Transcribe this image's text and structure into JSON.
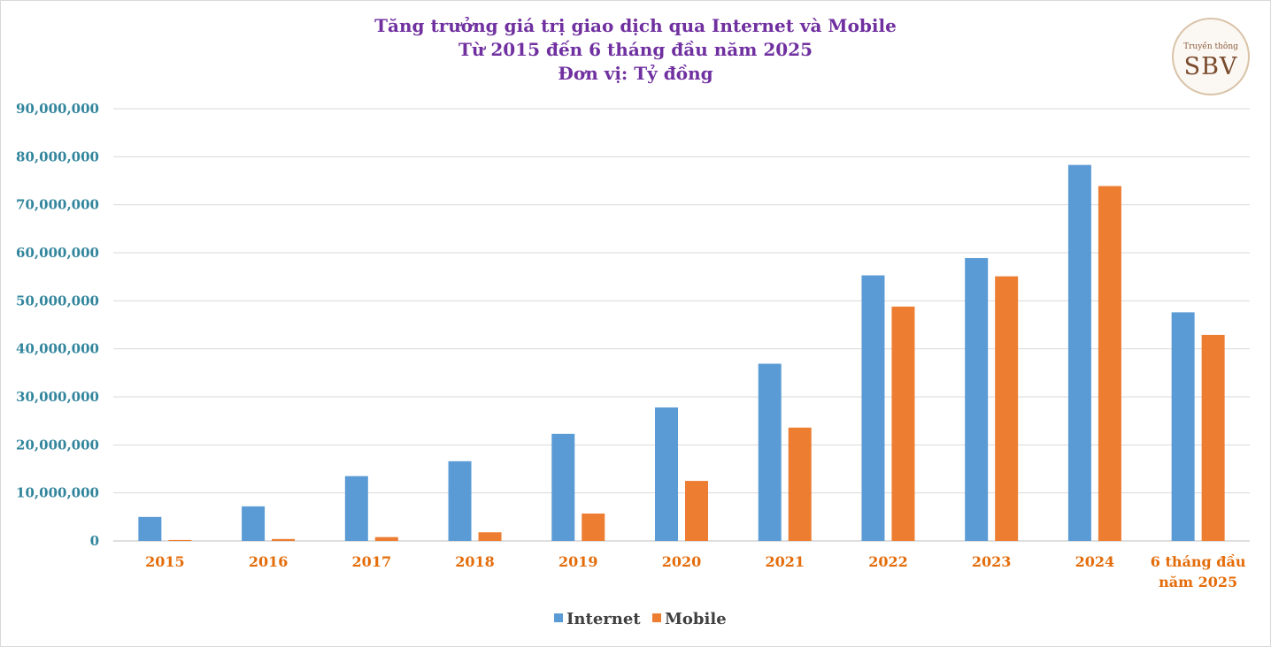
{
  "chart_data": {
    "type": "bar",
    "title_lines": [
      "Tăng trưởng giá trị giao dịch qua Internet và Mobile",
      "Từ 2015 đến 6 tháng đầu năm 2025",
      "Đơn vị: Tỷ đồng"
    ],
    "categories": [
      [
        "2015"
      ],
      [
        "2016"
      ],
      [
        "2017"
      ],
      [
        "2018"
      ],
      [
        "2019"
      ],
      [
        "2020"
      ],
      [
        "2021"
      ],
      [
        "2022"
      ],
      [
        "2023"
      ],
      [
        "2024"
      ],
      [
        "6 tháng đầu",
        "năm 2025"
      ]
    ],
    "series": [
      {
        "name": "Internet",
        "color": "#5b9bd5",
        "values": [
          5000000,
          7200000,
          13500000,
          16600000,
          22300000,
          27800000,
          36900000,
          55300000,
          58900000,
          78300000,
          47600000
        ]
      },
      {
        "name": "Mobile",
        "color": "#ed7d31",
        "values": [
          200000,
          400000,
          800000,
          1800000,
          5700000,
          12500000,
          23600000,
          48800000,
          55100000,
          73900000,
          42900000
        ]
      }
    ],
    "ylim": [
      0,
      90000000
    ],
    "yticks": [
      0,
      10000000,
      20000000,
      30000000,
      40000000,
      50000000,
      60000000,
      70000000,
      80000000,
      90000000
    ],
    "ytick_labels": [
      "0",
      "10,000,000",
      "20,000,000",
      "30,000,000",
      "40,000,000",
      "50,000,000",
      "60,000,000",
      "70,000,000",
      "80,000,000",
      "90,000,000"
    ],
    "grid": true,
    "legend_position": "bottom-center"
  },
  "logo": {
    "sub_text": "Truyền thông",
    "main_text": "SBV"
  }
}
